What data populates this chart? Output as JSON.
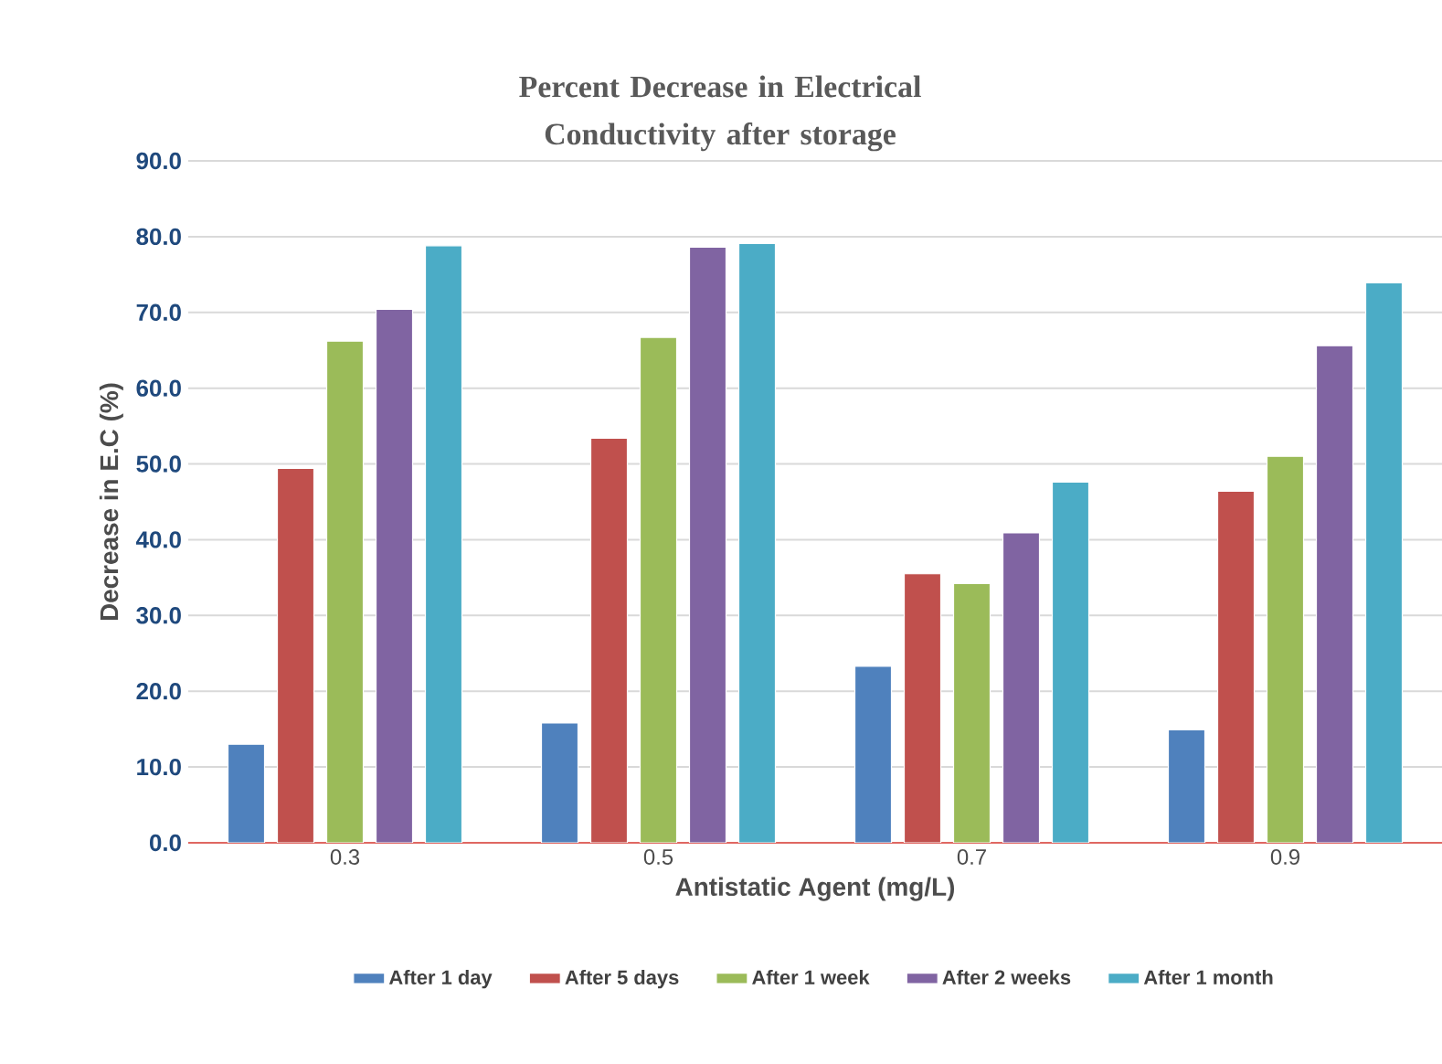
{
  "chart_data": {
    "type": "bar",
    "title": "Percent Decrease in Electrical Conductivity after  storage",
    "xlabel": "Antistatic Agent (mg/L)",
    "ylabel": "Decrease in E.C (%)",
    "categories": [
      "0.3",
      "0.5",
      "0.7",
      "0.9"
    ],
    "series": [
      {
        "name": "After 1 day",
        "color": "#4f81bd",
        "values": [
          13.0,
          15.8,
          23.3,
          14.9
        ]
      },
      {
        "name": "After 5 days",
        "color": "#c0504d",
        "values": [
          49.4,
          53.4,
          35.5,
          46.4
        ]
      },
      {
        "name": "After 1 week",
        "color": "#9bbb59",
        "values": [
          66.2,
          66.7,
          34.2,
          51.0
        ]
      },
      {
        "name": "After 2 weeks",
        "color": "#8064a2",
        "values": [
          70.4,
          78.6,
          40.9,
          65.6
        ]
      },
      {
        "name": "After 1 month",
        "color": "#4bacc6",
        "values": [
          78.8,
          79.1,
          47.6,
          73.9
        ]
      }
    ],
    "ylim": [
      0,
      90
    ],
    "yticks": [
      {
        "value": 0,
        "label": "0.0"
      },
      {
        "value": 10,
        "label": "10.0"
      },
      {
        "value": 20,
        "label": "20.0"
      },
      {
        "value": 30,
        "label": "30.0"
      },
      {
        "value": 40,
        "label": "40.0"
      },
      {
        "value": 50,
        "label": "50.0"
      },
      {
        "value": 60,
        "label": "60.0"
      },
      {
        "value": 70,
        "label": "70.0"
      },
      {
        "value": 80,
        "label": "80.0"
      },
      {
        "value": 90,
        "label": "90.0"
      }
    ],
    "grid": "y",
    "legend": "bottom"
  }
}
